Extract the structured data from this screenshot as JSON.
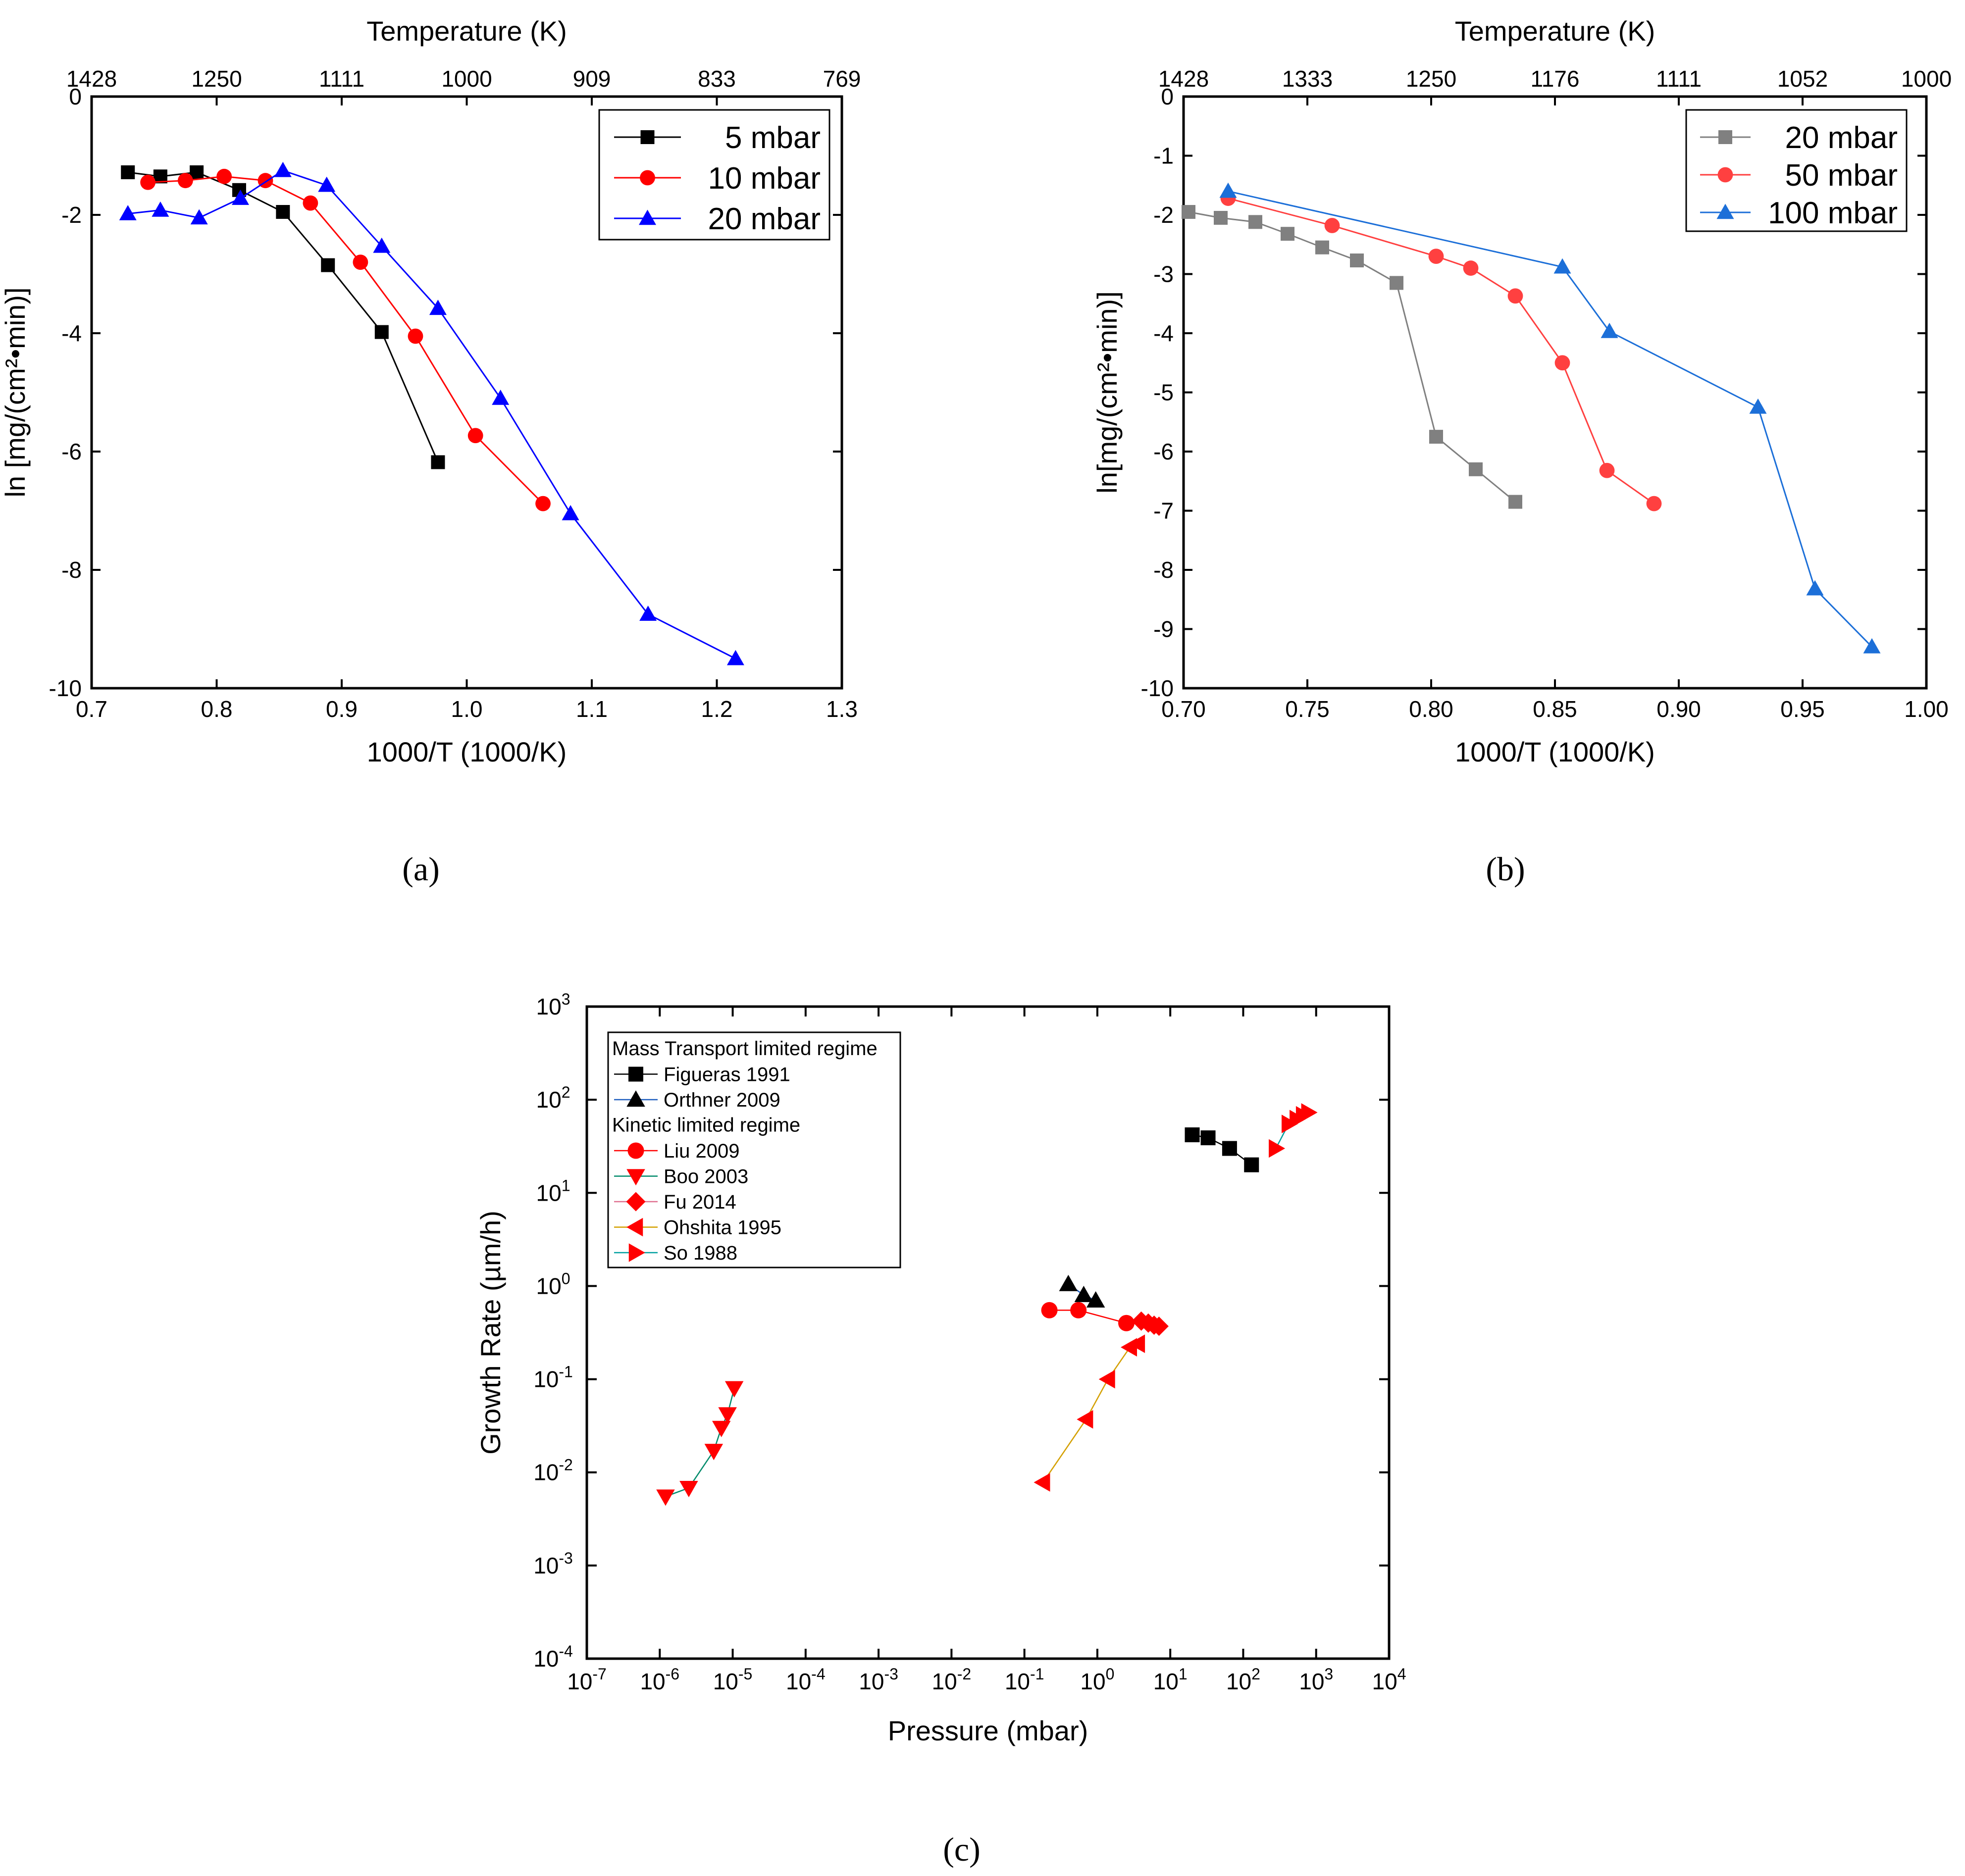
{
  "figure": {
    "panel_labels": {
      "a": "(a)",
      "b": "(b)",
      "c": "(c)"
    }
  },
  "chart_data": [
    {
      "id": "a",
      "type": "line",
      "xlabel": "1000/T (1000/K)",
      "ylabel": "ln [mg/(cm²•min)]",
      "top_axis_title": "Temperature (K)",
      "xlim": [
        0.7,
        1.3
      ],
      "ylim": [
        -10,
        0
      ],
      "xticks": [
        0.7,
        0.8,
        0.9,
        1.0,
        1.1,
        1.2,
        1.3
      ],
      "xtick_labels": [
        "0.7",
        "0.8",
        "0.9",
        "1.0",
        "1.1",
        "1.2",
        "1.3"
      ],
      "yticks": [
        -10,
        -8,
        -6,
        -4,
        -2,
        0
      ],
      "ytick_labels": [
        "-10",
        "-8",
        "-6",
        "-4",
        "-2",
        "0"
      ],
      "top_ticks": [
        0.7,
        0.8,
        0.9,
        1.0,
        1.1,
        1.2,
        1.3
      ],
      "top_tick_labels": [
        "1428",
        "1250",
        "1111",
        "1000",
        "909",
        "833",
        "769"
      ],
      "legend_position": "top-right",
      "series": [
        {
          "name": "5 mbar",
          "color": "#000000",
          "marker": "square",
          "x": [
            0.729,
            0.755,
            0.784,
            0.818,
            0.853,
            0.889,
            0.932,
            0.977
          ],
          "y": [
            -1.28,
            -1.35,
            -1.28,
            -1.58,
            -1.95,
            -2.85,
            -3.98,
            -6.18
          ]
        },
        {
          "name": "10 mbar",
          "color": "#ff0000",
          "marker": "circle",
          "x": [
            0.745,
            0.775,
            0.806,
            0.839,
            0.875,
            0.915,
            0.959,
            1.007,
            1.061
          ],
          "y": [
            -1.45,
            -1.42,
            -1.35,
            -1.42,
            -1.8,
            -2.8,
            -4.05,
            -5.73,
            -6.88
          ]
        },
        {
          "name": "20 mbar",
          "color": "#0000ff",
          "marker": "triangle-up",
          "x": [
            0.729,
            0.755,
            0.786,
            0.819,
            0.853,
            0.888,
            0.932,
            0.977,
            1.027,
            1.083,
            1.145,
            1.215
          ],
          "y": [
            -1.98,
            -1.92,
            -2.05,
            -1.72,
            -1.25,
            -1.5,
            -2.53,
            -3.58,
            -5.1,
            -7.05,
            -8.75,
            -9.5
          ]
        }
      ]
    },
    {
      "id": "b",
      "type": "line",
      "xlabel": "1000/T (1000/K)",
      "ylabel": "ln[mg/(cm²•min)]",
      "top_axis_title": "Temperature (K)",
      "xlim": [
        0.7,
        1.0
      ],
      "ylim": [
        -10,
        0
      ],
      "xticks": [
        0.7,
        0.75,
        0.8,
        0.85,
        0.9,
        0.95,
        1.0
      ],
      "xtick_labels": [
        "0.70",
        "0.75",
        "0.80",
        "0.85",
        "0.90",
        "0.95",
        "1.00"
      ],
      "yticks": [
        -10,
        -9,
        -8,
        -7,
        -6,
        -5,
        -4,
        -3,
        -2,
        -1,
        0
      ],
      "ytick_labels": [
        "-10",
        "-9",
        "-8",
        "-7",
        "-6",
        "-5",
        "-4",
        "-3",
        "-2",
        "-1",
        "0"
      ],
      "top_ticks": [
        0.7,
        0.75,
        0.8,
        0.85,
        0.9,
        0.95,
        1.0
      ],
      "top_tick_labels": [
        "1428",
        "1333",
        "1250",
        "1176",
        "1111",
        "1052",
        "1000"
      ],
      "legend_position": "top-right",
      "series": [
        {
          "name": "20 mbar",
          "color": "#808080",
          "marker": "square",
          "x": [
            0.702,
            0.715,
            0.729,
            0.742,
            0.756,
            0.77,
            0.786,
            0.802,
            0.818,
            0.834
          ],
          "y": [
            -1.95,
            -2.05,
            -2.12,
            -2.32,
            -2.55,
            -2.77,
            -3.15,
            -5.75,
            -6.3,
            -6.85
          ]
        },
        {
          "name": "50 mbar",
          "color": "#ff4040",
          "marker": "circle",
          "x": [
            0.718,
            0.76,
            0.802,
            0.816,
            0.834,
            0.853,
            0.871,
            0.89
          ],
          "y": [
            -1.72,
            -2.18,
            -2.7,
            -2.9,
            -3.37,
            -4.5,
            -6.32,
            -6.88
          ]
        },
        {
          "name": "100 mbar",
          "color": "#1c6fd8",
          "marker": "triangle-up",
          "x": [
            0.718,
            0.853,
            0.872,
            0.932,
            0.955,
            0.978
          ],
          "y": [
            -1.6,
            -2.88,
            -3.97,
            -5.25,
            -8.32,
            -9.3
          ]
        }
      ]
    },
    {
      "id": "c",
      "type": "scatter",
      "xscale": "log",
      "yscale": "log",
      "xlabel": "Pressure (mbar)",
      "ylabel": "Growth Rate (µm/h)",
      "xlim_exp": [
        -7,
        4
      ],
      "ylim_exp": [
        -4,
        3
      ],
      "xtick_exps": [
        -7,
        -6,
        -5,
        -4,
        -3,
        -2,
        -1,
        0,
        1,
        2,
        3,
        4
      ],
      "xtick_labels": [
        "-7",
        "-6",
        "-5",
        "-4",
        "-3",
        "-2",
        "-1",
        "0",
        "1",
        "2",
        "3",
        "4"
      ],
      "ytick_exps": [
        -4,
        -3,
        -2,
        -1,
        0,
        1,
        2,
        3
      ],
      "ytick_labels": [
        "-4",
        "-3",
        "-2",
        "-1",
        "0",
        "1",
        "2",
        "3"
      ],
      "tick_base": "10",
      "legend_position": "top-left",
      "legend_groups": [
        {
          "title": "Mass Transport limited regime",
          "entries": [
            "Figueras 1991",
            "Orthner 2009"
          ]
        },
        {
          "title": "Kinetic limited regime",
          "entries": [
            "Liu 2009",
            "Boo 2003",
            "Fu 2014",
            "Ohshita 1995",
            "So 1988"
          ]
        }
      ],
      "series": [
        {
          "name": "Figueras 1991",
          "color": "#000000",
          "line_color": "#000000",
          "marker": "square",
          "x": [
            20,
            33,
            65,
            130
          ],
          "y": [
            42,
            39,
            30,
            20
          ]
        },
        {
          "name": "Orthner 2009",
          "color": "#000000",
          "line_color": "#1f5fbf",
          "marker": "triangle-up",
          "x": [
            0.4,
            0.65,
            0.95
          ],
          "y": [
            1.05,
            0.8,
            0.7
          ]
        },
        {
          "name": "Liu 2009",
          "color": "#ff0000",
          "line_color": "#ff0000",
          "marker": "circle",
          "x": [
            0.22,
            0.55,
            2.5
          ],
          "y": [
            0.55,
            0.55,
            0.4
          ]
        },
        {
          "name": "Boo 2003",
          "color": "#ff0000",
          "line_color": "#008b6b",
          "marker": "triangle-down",
          "x": [
            1.2e-06,
            2.5e-06,
            5.5e-06,
            7e-06,
            8.5e-06,
            1.05e-05
          ],
          "y": [
            0.0055,
            0.0068,
            0.017,
            0.03,
            0.042,
            0.08
          ]
        },
        {
          "name": "Fu 2014",
          "color": "#ff0000",
          "line_color": "#e07090",
          "marker": "diamond",
          "x": [
            4,
            5,
            6,
            7
          ],
          "y": [
            0.42,
            0.4,
            0.38,
            0.37
          ]
        },
        {
          "name": "Ohshita 1995",
          "color": "#ff0000",
          "line_color": "#d4a000",
          "marker": "triangle-left",
          "x": [
            0.18,
            0.7,
            1.4,
            2.8,
            3.6
          ],
          "y": [
            0.0078,
            0.037,
            0.1,
            0.22,
            0.24
          ]
        },
        {
          "name": "So 1988",
          "color": "#ff0000",
          "line_color": "#00a0a0",
          "marker": "triangle-right",
          "x": [
            280,
            420,
            540,
            660,
            780
          ],
          "y": [
            30,
            55,
            62,
            68,
            73
          ]
        }
      ]
    }
  ]
}
